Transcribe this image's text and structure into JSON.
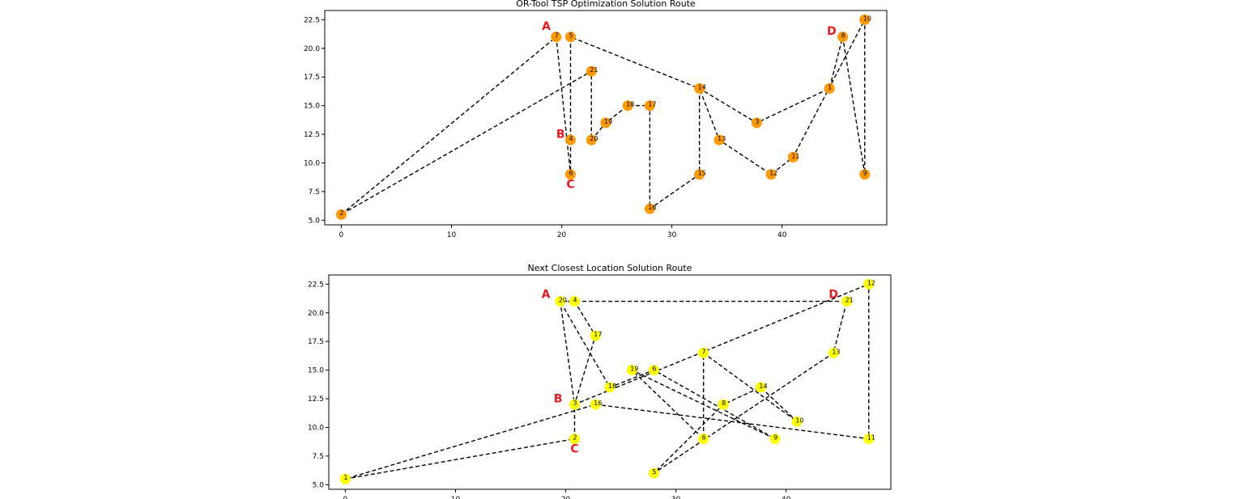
{
  "chart_data": [
    {
      "type": "scatter",
      "title": "OR-Tool TSP Optimization Solution Route",
      "xlabel": "",
      "ylabel": "",
      "xlim": [
        -1.5,
        49.5
      ],
      "ylim": [
        4.6,
        23.3
      ],
      "xticks": [
        0,
        10,
        20,
        30,
        40
      ],
      "yticks": [
        5.0,
        7.5,
        10.0,
        12.5,
        15.0,
        17.5,
        20.0,
        22.5
      ],
      "ytick_labels": [
        "5.0",
        "7.5",
        "10.0",
        "12.5",
        "15.0",
        "17.5",
        "20.0",
        "22.5"
      ],
      "point_color": "#ff9900",
      "points": [
        {
          "label": "2",
          "x": 0.0,
          "y": 5.5
        },
        {
          "label": "7",
          "x": 19.5,
          "y": 21.0
        },
        {
          "label": "5",
          "x": 20.8,
          "y": 21.0
        },
        {
          "label": "21",
          "x": 22.7,
          "y": 18.0
        },
        {
          "label": "4",
          "x": 20.8,
          "y": 12.0
        },
        {
          "label": "20",
          "x": 22.7,
          "y": 12.0
        },
        {
          "label": "6",
          "x": 20.8,
          "y": 9.0
        },
        {
          "label": "19",
          "x": 24.0,
          "y": 13.5
        },
        {
          "label": "18",
          "x": 26.0,
          "y": 15.0
        },
        {
          "label": "17",
          "x": 28.0,
          "y": 15.0
        },
        {
          "label": "16",
          "x": 28.0,
          "y": 6.0
        },
        {
          "label": "14",
          "x": 32.5,
          "y": 16.5
        },
        {
          "label": "15",
          "x": 32.5,
          "y": 9.0
        },
        {
          "label": "13",
          "x": 34.3,
          "y": 12.0
        },
        {
          "label": "3",
          "x": 37.7,
          "y": 13.5
        },
        {
          "label": "12",
          "x": 39.0,
          "y": 9.0
        },
        {
          "label": "11",
          "x": 41.0,
          "y": 10.5
        },
        {
          "label": "1",
          "x": 44.3,
          "y": 16.5
        },
        {
          "label": "8",
          "x": 45.5,
          "y": 21.0
        },
        {
          "label": "10",
          "x": 47.5,
          "y": 22.5
        },
        {
          "label": "9",
          "x": 47.5,
          "y": 9.0
        }
      ],
      "route": [
        "2",
        "7",
        "6",
        "4",
        "5",
        "14",
        "3",
        "1",
        "8",
        "9",
        "10",
        "11",
        "12",
        "13",
        "14",
        "15",
        "16",
        "17",
        "18",
        "19",
        "20",
        "21",
        "2"
      ],
      "annotations": [
        {
          "text": "A",
          "x": 18.6,
          "y": 21.6
        },
        {
          "text": "B",
          "x": 19.9,
          "y": 12.2
        },
        {
          "text": "C",
          "x": 20.8,
          "y": 7.8
        },
        {
          "text": "D",
          "x": 44.5,
          "y": 21.2
        }
      ]
    },
    {
      "type": "scatter",
      "title": "Next Closest Location Solution Route",
      "xlabel": "",
      "ylabel": "",
      "xlim": [
        -1.5,
        49.5
      ],
      "ylim": [
        4.6,
        23.3
      ],
      "xticks": [
        0,
        10,
        20,
        30,
        40
      ],
      "yticks": [
        5.0,
        7.5,
        10.0,
        12.5,
        15.0,
        17.5,
        20.0,
        22.5
      ],
      "ytick_labels": [
        "5.0",
        "7.5",
        "10.0",
        "12.5",
        "15.0",
        "17.5",
        "20.0",
        "22.5"
      ],
      "point_color": "#ffff00",
      "points": [
        {
          "label": "1",
          "x": 0.0,
          "y": 5.5
        },
        {
          "label": "20",
          "x": 19.5,
          "y": 21.0
        },
        {
          "label": "4",
          "x": 20.8,
          "y": 21.0
        },
        {
          "label": "17",
          "x": 22.7,
          "y": 18.0
        },
        {
          "label": "3",
          "x": 20.8,
          "y": 12.0
        },
        {
          "label": "16",
          "x": 22.7,
          "y": 12.0
        },
        {
          "label": "2",
          "x": 20.8,
          "y": 9.0
        },
        {
          "label": "18",
          "x": 24.0,
          "y": 13.5
        },
        {
          "label": "19",
          "x": 26.0,
          "y": 15.0
        },
        {
          "label": "6",
          "x": 28.0,
          "y": 15.0
        },
        {
          "label": "5",
          "x": 28.0,
          "y": 6.0
        },
        {
          "label": "7",
          "x": 32.5,
          "y": 16.5
        },
        {
          "label": "6",
          "x": 32.5,
          "y": 9.0
        },
        {
          "label": "8",
          "x": 34.3,
          "y": 12.0
        },
        {
          "label": "14",
          "x": 37.7,
          "y": 13.5
        },
        {
          "label": "9",
          "x": 39.0,
          "y": 9.0
        },
        {
          "label": "10",
          "x": 41.0,
          "y": 10.5
        },
        {
          "label": "13",
          "x": 44.3,
          "y": 16.5
        },
        {
          "label": "21",
          "x": 45.5,
          "y": 21.0
        },
        {
          "label": "12",
          "x": 47.5,
          "y": 22.5
        },
        {
          "label": "11",
          "x": 47.5,
          "y": 9.0
        }
      ],
      "route_indices": [
        0,
        6,
        4,
        3,
        2,
        1,
        7,
        9,
        15,
        8,
        12,
        11,
        16,
        14,
        13,
        10,
        17,
        18,
        1,
        4,
        19,
        20,
        5,
        0
      ],
      "annotations": [
        {
          "text": "A",
          "x": 18.2,
          "y": 21.3
        },
        {
          "text": "B",
          "x": 19.3,
          "y": 12.2
        },
        {
          "text": "C",
          "x": 20.8,
          "y": 7.8
        },
        {
          "text": "D",
          "x": 44.3,
          "y": 21.3
        }
      ]
    }
  ]
}
